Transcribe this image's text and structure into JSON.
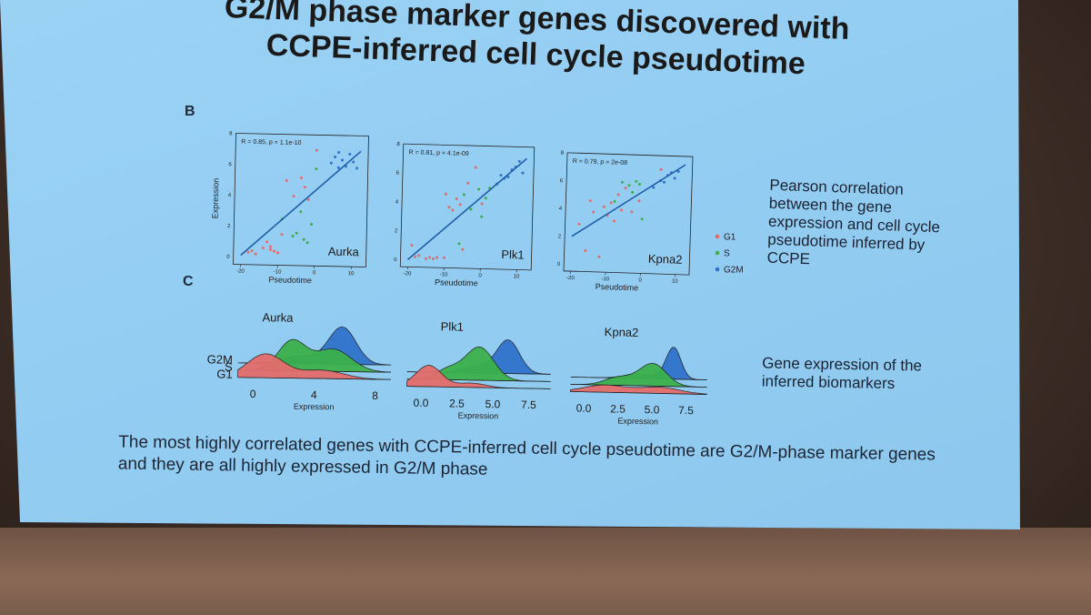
{
  "slide": {
    "title_line1": "G2/M phase marker genes discovered with",
    "title_line2": "CCPE-inferred cell cycle pseudotime",
    "panel_b_letter": "B",
    "panel_c_letter": "C",
    "note_b_lines": [
      "Pearson correlation",
      "between the gene",
      "expression and cell cycle",
      "pseudotime inferred by",
      "CCPE"
    ],
    "note_c_lines": [
      "Gene expression of the",
      "inferred biomarkers"
    ],
    "footer_line1": "The most highly correlated genes with CCPE-inferred cell cycle pseudotime are G2/M-phase marker genes",
    "footer_line2": "and they are all highly expressed in G2/M phase"
  },
  "colors": {
    "G1": "#e46b6b",
    "S": "#3cb04a",
    "G2M": "#2f72c9",
    "fit_line": "#1f5fa8"
  },
  "chart_data": [
    {
      "type": "scatter",
      "gene": "Aurka",
      "annotation": "R = 0.85, p = 1.1e-10",
      "xlabel": "Pseudotime",
      "ylabel": "Expression",
      "xlim": [
        -22,
        14
      ],
      "ylim": [
        -0.5,
        8
      ],
      "xticks": [
        "-20",
        "-10",
        "0",
        "10"
      ],
      "yticks": [
        "0",
        "2",
        "4",
        "6",
        "8"
      ],
      "fit": [
        [
          -20,
          0.1
        ],
        [
          12,
          7.0
        ]
      ],
      "series": [
        {
          "name": "G1",
          "points": [
            [
              -18,
              0.3
            ],
            [
              -17,
              0.4
            ],
            [
              -16,
              0.2
            ],
            [
              -14,
              0.6
            ],
            [
              -13,
              1.0
            ],
            [
              -12,
              0.7
            ],
            [
              -11,
              0.4
            ],
            [
              -10,
              0.3
            ],
            [
              -9,
              1.5
            ],
            [
              -8,
              5.0
            ],
            [
              -6,
              4.0
            ],
            [
              -4,
              5.2
            ],
            [
              -3,
              4.6
            ],
            [
              -2,
              3.8
            ],
            [
              0,
              7.0
            ],
            [
              -12,
              0.5
            ]
          ]
        },
        {
          "name": "S",
          "points": [
            [
              -9,
              2.5
            ],
            [
              -6,
              1.4
            ],
            [
              -5,
              1.6
            ],
            [
              -4,
              3.0
            ],
            [
              -2,
              1.0
            ],
            [
              -1,
              2.2
            ],
            [
              0,
              5.8
            ],
            [
              -3,
              1.2
            ]
          ]
        },
        {
          "name": "G2M",
          "points": [
            [
              4,
              6.2
            ],
            [
              5,
              6.6
            ],
            [
              6,
              5.9
            ],
            [
              7,
              6.4
            ],
            [
              8,
              6.0
            ],
            [
              9,
              6.8
            ],
            [
              10,
              6.3
            ],
            [
              11,
              5.9
            ],
            [
              6,
              6.9
            ]
          ]
        }
      ]
    },
    {
      "type": "scatter",
      "gene": "Plk1",
      "annotation": "R = 0.81, p = 4.1e-09",
      "xlabel": "Pseudotime",
      "ylabel": "",
      "xlim": [
        -22,
        14
      ],
      "ylim": [
        -0.5,
        8
      ],
      "xticks": [
        "-20",
        "-10",
        "0",
        "10"
      ],
      "yticks": [
        "0",
        "2",
        "4",
        "6",
        "8"
      ],
      "fit": [
        [
          -20,
          0.0
        ],
        [
          12,
          7.2
        ]
      ],
      "series": [
        {
          "name": "G1",
          "points": [
            [
              -19,
              1.0
            ],
            [
              -18,
              0.2
            ],
            [
              -17,
              0.3
            ],
            [
              -15,
              0.1
            ],
            [
              -14,
              0.2
            ],
            [
              -13,
              0.1
            ],
            [
              -12,
              0.2
            ],
            [
              -10,
              4.6
            ],
            [
              -9,
              3.7
            ],
            [
              -8,
              3.5
            ],
            [
              -7,
              4.3
            ],
            [
              -6,
              3.9
            ],
            [
              -5,
              0.8
            ],
            [
              -4,
              5.4
            ],
            [
              -2,
              6.5
            ],
            [
              0,
              4.0
            ],
            [
              -10,
              0.2
            ]
          ]
        },
        {
          "name": "S",
          "points": [
            [
              -5,
              4.6
            ],
            [
              -3,
              3.6
            ],
            [
              -1,
              5.0
            ],
            [
              0,
              3.1
            ],
            [
              2,
              5.1
            ],
            [
              1,
              4.4
            ],
            [
              -6,
              1.2
            ]
          ]
        },
        {
          "name": "G2M",
          "points": [
            [
              4,
              5.4
            ],
            [
              6,
              5.8
            ],
            [
              8,
              6.4
            ],
            [
              9,
              6.6
            ],
            [
              10,
              7.0
            ],
            [
              11,
              6.2
            ],
            [
              7,
              5.9
            ],
            [
              5,
              6.0
            ]
          ]
        }
      ]
    },
    {
      "type": "scatter",
      "gene": "Kpna2",
      "annotation": "R = 0.79, p = 2e-08",
      "xlabel": "Pseudotime",
      "ylabel": "",
      "xlim": [
        -22,
        14
      ],
      "ylim": [
        -0.5,
        8
      ],
      "xticks": [
        "-20",
        "-10",
        "0",
        "10"
      ],
      "yticks": [
        "0",
        "2",
        "4",
        "6",
        "8"
      ],
      "fit": [
        [
          -20,
          2.0
        ],
        [
          12,
          7.4
        ]
      ],
      "series": [
        {
          "name": "G1",
          "points": [
            [
              -18,
              2.9
            ],
            [
              -16,
              1.0
            ],
            [
              -14,
              3.8
            ],
            [
              -12,
              0.6
            ],
            [
              -11,
              4.2
            ],
            [
              -10,
              3.6
            ],
            [
              -9,
              4.5
            ],
            [
              -8,
              3.2
            ],
            [
              -7,
              5.1
            ],
            [
              -6,
              4.0
            ],
            [
              -5,
              5.6
            ],
            [
              -3,
              3.9
            ],
            [
              -1,
              4.7
            ],
            [
              5,
              7.0
            ],
            [
              -15,
              4.6
            ]
          ]
        },
        {
          "name": "S",
          "points": [
            [
              -8,
              4.6
            ],
            [
              -6,
              6.0
            ],
            [
              -4,
              5.8
            ],
            [
              -3,
              5.3
            ],
            [
              -1,
              5.9
            ],
            [
              0,
              3.4
            ],
            [
              -2,
              6.1
            ]
          ]
        },
        {
          "name": "G2M",
          "points": [
            [
              3,
              5.7
            ],
            [
              5,
              6.2
            ],
            [
              7,
              6.6
            ],
            [
              8,
              6.8
            ],
            [
              9,
              6.4
            ],
            [
              10,
              6.9
            ],
            [
              6,
              6.1
            ]
          ]
        }
      ]
    },
    {
      "type": "area",
      "gene": "Aurka",
      "xlabel": "Expression",
      "xticks": [
        "0",
        "4",
        "8"
      ],
      "xlim": [
        -1,
        9
      ],
      "row_labels": [
        "G2M",
        "S",
        "G1"
      ],
      "series": [
        {
          "name": "G1",
          "peaks": [
            [
              0.8,
              1.0,
              1.2
            ],
            [
              4.5,
              0.35,
              1.4
            ]
          ]
        },
        {
          "name": "S",
          "peaks": [
            [
              2.5,
              0.8,
              0.9
            ],
            [
              5.2,
              0.6,
              1.2
            ]
          ]
        },
        {
          "name": "G2M",
          "peaks": [
            [
              5.8,
              1.0,
              0.9
            ],
            [
              3.0,
              0.2,
              1.2
            ]
          ]
        }
      ]
    },
    {
      "type": "area",
      "gene": "Plk1",
      "xlabel": "Expression",
      "xticks": [
        "0.0",
        "2.5",
        "5.0",
        "7.5"
      ],
      "xlim": [
        -1,
        9
      ],
      "row_labels": [],
      "series": [
        {
          "name": "G1",
          "peaks": [
            [
              0.5,
              1.0,
              0.9
            ],
            [
              3.5,
              0.2,
              1.0
            ]
          ]
        },
        {
          "name": "S",
          "peaks": [
            [
              4.0,
              1.0,
              1.0
            ],
            [
              1.8,
              0.3,
              0.8
            ]
          ]
        },
        {
          "name": "G2M",
          "peaks": [
            [
              6.0,
              1.0,
              0.8
            ],
            [
              3.8,
              0.2,
              1.0
            ]
          ]
        }
      ]
    },
    {
      "type": "area",
      "gene": "Kpna2",
      "xlabel": "Expression",
      "xticks": [
        "0.0",
        "2.5",
        "5.0",
        "7.5"
      ],
      "xlim": [
        -1,
        9
      ],
      "row_labels": [],
      "series": [
        {
          "name": "G1",
          "peaks": [
            [
              1.5,
              0.35,
              1.5
            ],
            [
              5.5,
              0.3,
              1.5
            ]
          ]
        },
        {
          "name": "S",
          "peaks": [
            [
              5.0,
              0.7,
              1.0
            ],
            [
              2.5,
              0.25,
              1.0
            ]
          ]
        },
        {
          "name": "G2M",
          "peaks": [
            [
              6.5,
              1.0,
              0.55
            ],
            [
              4.0,
              0.15,
              1.0
            ]
          ]
        }
      ]
    }
  ],
  "legend": {
    "entries": [
      {
        "label": "G1",
        "color": "#e46b6b"
      },
      {
        "label": "S",
        "color": "#3cb04a"
      },
      {
        "label": "G2M",
        "color": "#2f72c9"
      }
    ]
  }
}
